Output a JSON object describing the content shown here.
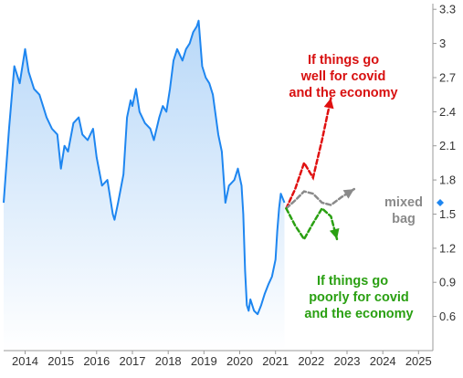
{
  "chart_data": {
    "type": "area",
    "x_unit": "year",
    "xlim": [
      2013.4,
      2025.4
    ],
    "ylim": [
      0.3,
      3.35
    ],
    "x_ticks": [
      2014,
      2015,
      2016,
      2017,
      2018,
      2019,
      2020,
      2021,
      2022,
      2023,
      2024,
      2025
    ],
    "x_tick_labels": [
      "2014",
      "2015",
      "2016",
      "2017",
      "2018",
      "2019",
      "2020",
      "2021",
      "2022",
      "2023",
      "2024",
      "2025"
    ],
    "y_ticks": [
      0.6,
      0.9,
      1.2,
      1.5,
      1.8,
      2.1,
      2.4,
      2.7,
      3.0,
      3.3
    ],
    "y_tick_labels": [
      "0.6",
      "0.9",
      "1.2",
      "1.5",
      "1.8",
      "2.1",
      "2.4",
      "2.7",
      "3",
      "3.3"
    ],
    "grid": false,
    "colors": {
      "line": "#1e86f0",
      "fill_top": "#b8d8f8",
      "fill_bottom": "#ffffff",
      "good": "#e01010",
      "neutral": "#8a8a8a",
      "bad": "#2aa012",
      "axis": "#9a9a9a"
    },
    "series": [
      {
        "x": [
          2013.4,
          2013.55,
          2013.7,
          2013.85,
          2014.0,
          2014.1,
          2014.25,
          2014.4,
          2014.5,
          2014.6,
          2014.75,
          2014.9,
          2015.0,
          2015.1,
          2015.2,
          2015.35,
          2015.5,
          2015.6,
          2015.75,
          2015.9,
          2016.0,
          2016.15,
          2016.3,
          2016.45,
          2016.5,
          2016.6,
          2016.75,
          2016.85,
          2016.95,
          2017.0,
          2017.1,
          2017.2,
          2017.35,
          2017.5,
          2017.6,
          2017.75,
          2017.85,
          2017.95,
          2018.05,
          2018.15,
          2018.25,
          2018.4,
          2018.5,
          2018.6,
          2018.7,
          2018.8,
          2018.85,
          2018.95,
          2019.05,
          2019.15,
          2019.25,
          2019.4,
          2019.5,
          2019.6,
          2019.7,
          2019.85,
          2019.95,
          2020.05,
          2020.1,
          2020.15,
          2020.2,
          2020.25,
          2020.3,
          2020.4,
          2020.5,
          2020.6,
          2020.7,
          2020.8,
          2020.9,
          2021.0,
          2021.05,
          2021.1,
          2021.15,
          2021.25
        ],
        "values": [
          1.6,
          2.25,
          2.8,
          2.65,
          2.95,
          2.75,
          2.6,
          2.55,
          2.45,
          2.35,
          2.25,
          2.2,
          1.9,
          2.1,
          2.05,
          2.3,
          2.35,
          2.2,
          2.15,
          2.25,
          2.0,
          1.75,
          1.8,
          1.5,
          1.45,
          1.6,
          1.85,
          2.35,
          2.5,
          2.45,
          2.6,
          2.4,
          2.3,
          2.25,
          2.15,
          2.35,
          2.45,
          2.4,
          2.6,
          2.85,
          2.95,
          2.85,
          2.95,
          3.0,
          3.1,
          3.15,
          3.2,
          2.8,
          2.7,
          2.65,
          2.55,
          2.2,
          2.05,
          1.6,
          1.75,
          1.8,
          1.9,
          1.75,
          1.5,
          1.0,
          0.7,
          0.65,
          0.75,
          0.65,
          0.62,
          0.7,
          0.8,
          0.88,
          0.95,
          1.1,
          1.35,
          1.55,
          1.68,
          1.6
        ]
      }
    ],
    "marker": {
      "value": 1.6,
      "color": "#1e86f0"
    },
    "projections": [
      {
        "label": "If things go well for covid and the economy",
        "x": [
          2021.3,
          2021.55,
          2021.8,
          2022.05,
          2022.3,
          2022.55
        ],
        "values": [
          1.55,
          1.72,
          1.95,
          1.82,
          2.15,
          2.52
        ]
      },
      {
        "label": "mixed bag",
        "x": [
          2021.3,
          2021.55,
          2021.8,
          2022.05,
          2022.3,
          2022.55,
          2022.85,
          2023.2
        ],
        "values": [
          1.55,
          1.62,
          1.7,
          1.68,
          1.6,
          1.58,
          1.65,
          1.72
        ]
      },
      {
        "label": "If things go poorly for covid and the economy",
        "x": [
          2021.3,
          2021.55,
          2021.8,
          2022.05,
          2022.3,
          2022.55,
          2022.72
        ],
        "values": [
          1.55,
          1.4,
          1.28,
          1.42,
          1.55,
          1.48,
          1.28
        ]
      }
    ]
  },
  "annotations": {
    "good": [
      "If things go",
      "well for covid",
      "and the economy"
    ],
    "neutral": [
      "mixed",
      "bag"
    ],
    "bad": [
      "If things go",
      "poorly for covid",
      "and the economy"
    ]
  }
}
